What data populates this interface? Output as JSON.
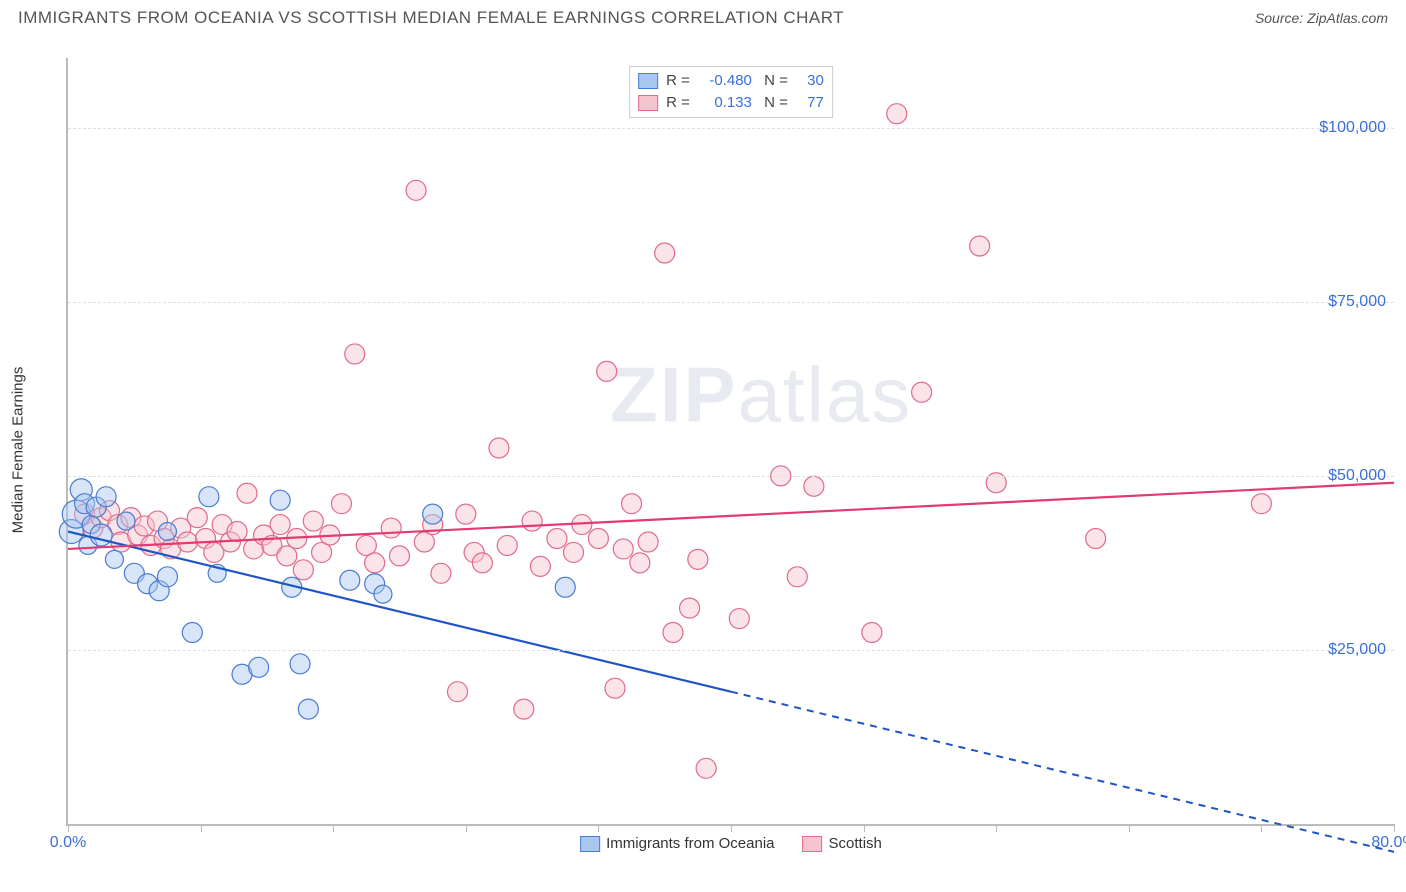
{
  "header": {
    "title": "IMMIGRANTS FROM OCEANIA VS SCOTTISH MEDIAN FEMALE EARNINGS CORRELATION CHART",
    "source_label": "Source:",
    "source_name": "ZipAtlas.com"
  },
  "chart": {
    "type": "scatter",
    "ylabel": "Median Female Earnings",
    "watermark": "ZIPatlas",
    "background_color": "#ffffff",
    "grid_color": "#e0e0e0",
    "axis_color": "#bbbbbb",
    "tick_label_color": "#3b6fd6",
    "xlim": [
      0,
      80
    ],
    "ylim": [
      0,
      110000
    ],
    "x_ticks": [
      0,
      8,
      16,
      24,
      32,
      40,
      48,
      56,
      64,
      72,
      80
    ],
    "x_tick_labels": {
      "0": "0.0%",
      "80": "80.0%"
    },
    "y_grid": [
      25000,
      50000,
      75000,
      100000
    ],
    "y_tick_labels": [
      "$25,000",
      "$50,000",
      "$75,000",
      "$100,000"
    ],
    "marker_radius": 10,
    "marker_opacity": 0.45,
    "series": [
      {
        "name": "Immigrants from Oceania",
        "fill": "#a9c6ef",
        "stroke": "#4a7bd0",
        "line_color": "#1f55c4",
        "r_value": "-0.480",
        "n_value": "30",
        "trend": {
          "y_at_x0": 42000,
          "y_at_x80": -4000,
          "dash_after_x": 40
        },
        "points": [
          {
            "x": 0.2,
            "y": 42000,
            "r": 12
          },
          {
            "x": 0.5,
            "y": 44500,
            "r": 14
          },
          {
            "x": 0.8,
            "y": 48000,
            "r": 11
          },
          {
            "x": 1.0,
            "y": 46000,
            "r": 10
          },
          {
            "x": 1.2,
            "y": 40000,
            "r": 9
          },
          {
            "x": 1.4,
            "y": 43000,
            "r": 9
          },
          {
            "x": 1.7,
            "y": 45500,
            "r": 10
          },
          {
            "x": 2.0,
            "y": 41500,
            "r": 11
          },
          {
            "x": 2.3,
            "y": 47000,
            "r": 10
          },
          {
            "x": 2.8,
            "y": 38000,
            "r": 9
          },
          {
            "x": 3.5,
            "y": 43500,
            "r": 9
          },
          {
            "x": 4.0,
            "y": 36000,
            "r": 10
          },
          {
            "x": 4.8,
            "y": 34500,
            "r": 10
          },
          {
            "x": 5.5,
            "y": 33500,
            "r": 10
          },
          {
            "x": 6.0,
            "y": 42000,
            "r": 9
          },
          {
            "x": 6.0,
            "y": 35500,
            "r": 10
          },
          {
            "x": 7.5,
            "y": 27500,
            "r": 10
          },
          {
            "x": 8.5,
            "y": 47000,
            "r": 10
          },
          {
            "x": 9.0,
            "y": 36000,
            "r": 9
          },
          {
            "x": 10.5,
            "y": 21500,
            "r": 10
          },
          {
            "x": 11.5,
            "y": 22500,
            "r": 10
          },
          {
            "x": 12.8,
            "y": 46500,
            "r": 10
          },
          {
            "x": 13.5,
            "y": 34000,
            "r": 10
          },
          {
            "x": 14.0,
            "y": 23000,
            "r": 10
          },
          {
            "x": 14.5,
            "y": 16500,
            "r": 10
          },
          {
            "x": 17.0,
            "y": 35000,
            "r": 10
          },
          {
            "x": 18.5,
            "y": 34500,
            "r": 10
          },
          {
            "x": 19.0,
            "y": 33000,
            "r": 9
          },
          {
            "x": 22.0,
            "y": 44500,
            "r": 10
          },
          {
            "x": 30.0,
            "y": 34000,
            "r": 10
          }
        ]
      },
      {
        "name": "Scottish",
        "fill": "#f6c4cf",
        "stroke": "#e06a8a",
        "line_color": "#e23b72",
        "r_value": "0.133",
        "n_value": "77",
        "trend": {
          "y_at_x0": 39500,
          "y_at_x80": 49000,
          "dash_after_x": 80
        },
        "points": [
          {
            "x": 1.0,
            "y": 44500
          },
          {
            "x": 1.5,
            "y": 42500
          },
          {
            "x": 2.0,
            "y": 44000
          },
          {
            "x": 2.5,
            "y": 45000
          },
          {
            "x": 3.0,
            "y": 43000
          },
          {
            "x": 3.2,
            "y": 40500
          },
          {
            "x": 3.8,
            "y": 44000
          },
          {
            "x": 4.2,
            "y": 41500
          },
          {
            "x": 4.6,
            "y": 42800
          },
          {
            "x": 5.0,
            "y": 40000
          },
          {
            "x": 5.4,
            "y": 43500
          },
          {
            "x": 5.8,
            "y": 41000
          },
          {
            "x": 6.2,
            "y": 39500
          },
          {
            "x": 6.8,
            "y": 42500
          },
          {
            "x": 7.2,
            "y": 40500
          },
          {
            "x": 7.8,
            "y": 44000
          },
          {
            "x": 8.3,
            "y": 41000
          },
          {
            "x": 8.8,
            "y": 39000
          },
          {
            "x": 9.3,
            "y": 43000
          },
          {
            "x": 9.8,
            "y": 40500
          },
          {
            "x": 10.2,
            "y": 42000
          },
          {
            "x": 10.8,
            "y": 47500
          },
          {
            "x": 11.2,
            "y": 39500
          },
          {
            "x": 11.8,
            "y": 41500
          },
          {
            "x": 12.3,
            "y": 40000
          },
          {
            "x": 12.8,
            "y": 43000
          },
          {
            "x": 13.2,
            "y": 38500
          },
          {
            "x": 13.8,
            "y": 41000
          },
          {
            "x": 14.2,
            "y": 36500
          },
          {
            "x": 14.8,
            "y": 43500
          },
          {
            "x": 15.3,
            "y": 39000
          },
          {
            "x": 15.8,
            "y": 41500
          },
          {
            "x": 16.5,
            "y": 46000
          },
          {
            "x": 17.3,
            "y": 67500
          },
          {
            "x": 18.0,
            "y": 40000
          },
          {
            "x": 18.5,
            "y": 37500
          },
          {
            "x": 19.5,
            "y": 42500
          },
          {
            "x": 20.0,
            "y": 38500
          },
          {
            "x": 21.0,
            "y": 91000
          },
          {
            "x": 21.5,
            "y": 40500
          },
          {
            "x": 22.0,
            "y": 43000
          },
          {
            "x": 22.5,
            "y": 36000
          },
          {
            "x": 23.5,
            "y": 19000
          },
          {
            "x": 24.0,
            "y": 44500
          },
          {
            "x": 24.5,
            "y": 39000
          },
          {
            "x": 25.0,
            "y": 37500
          },
          {
            "x": 26.0,
            "y": 54000
          },
          {
            "x": 26.5,
            "y": 40000
          },
          {
            "x": 27.5,
            "y": 16500
          },
          {
            "x": 28.0,
            "y": 43500
          },
          {
            "x": 28.5,
            "y": 37000
          },
          {
            "x": 29.5,
            "y": 41000
          },
          {
            "x": 30.5,
            "y": 39000
          },
          {
            "x": 31.0,
            "y": 43000
          },
          {
            "x": 32.0,
            "y": 41000
          },
          {
            "x": 32.5,
            "y": 65000
          },
          {
            "x": 33.0,
            "y": 19500
          },
          {
            "x": 33.5,
            "y": 39500
          },
          {
            "x": 34.0,
            "y": 46000
          },
          {
            "x": 34.5,
            "y": 37500
          },
          {
            "x": 35.0,
            "y": 40500
          },
          {
            "x": 36.0,
            "y": 82000
          },
          {
            "x": 36.5,
            "y": 27500
          },
          {
            "x": 37.5,
            "y": 31000
          },
          {
            "x": 38.0,
            "y": 38000
          },
          {
            "x": 38.5,
            "y": 8000
          },
          {
            "x": 40.5,
            "y": 29500
          },
          {
            "x": 43.0,
            "y": 50000
          },
          {
            "x": 44.0,
            "y": 35500
          },
          {
            "x": 45.0,
            "y": 48500
          },
          {
            "x": 48.5,
            "y": 27500
          },
          {
            "x": 50.0,
            "y": 102000
          },
          {
            "x": 51.5,
            "y": 62000
          },
          {
            "x": 55.0,
            "y": 83000
          },
          {
            "x": 56.0,
            "y": 49000
          },
          {
            "x": 62.0,
            "y": 41000
          },
          {
            "x": 72.0,
            "y": 46000
          }
        ]
      }
    ]
  }
}
